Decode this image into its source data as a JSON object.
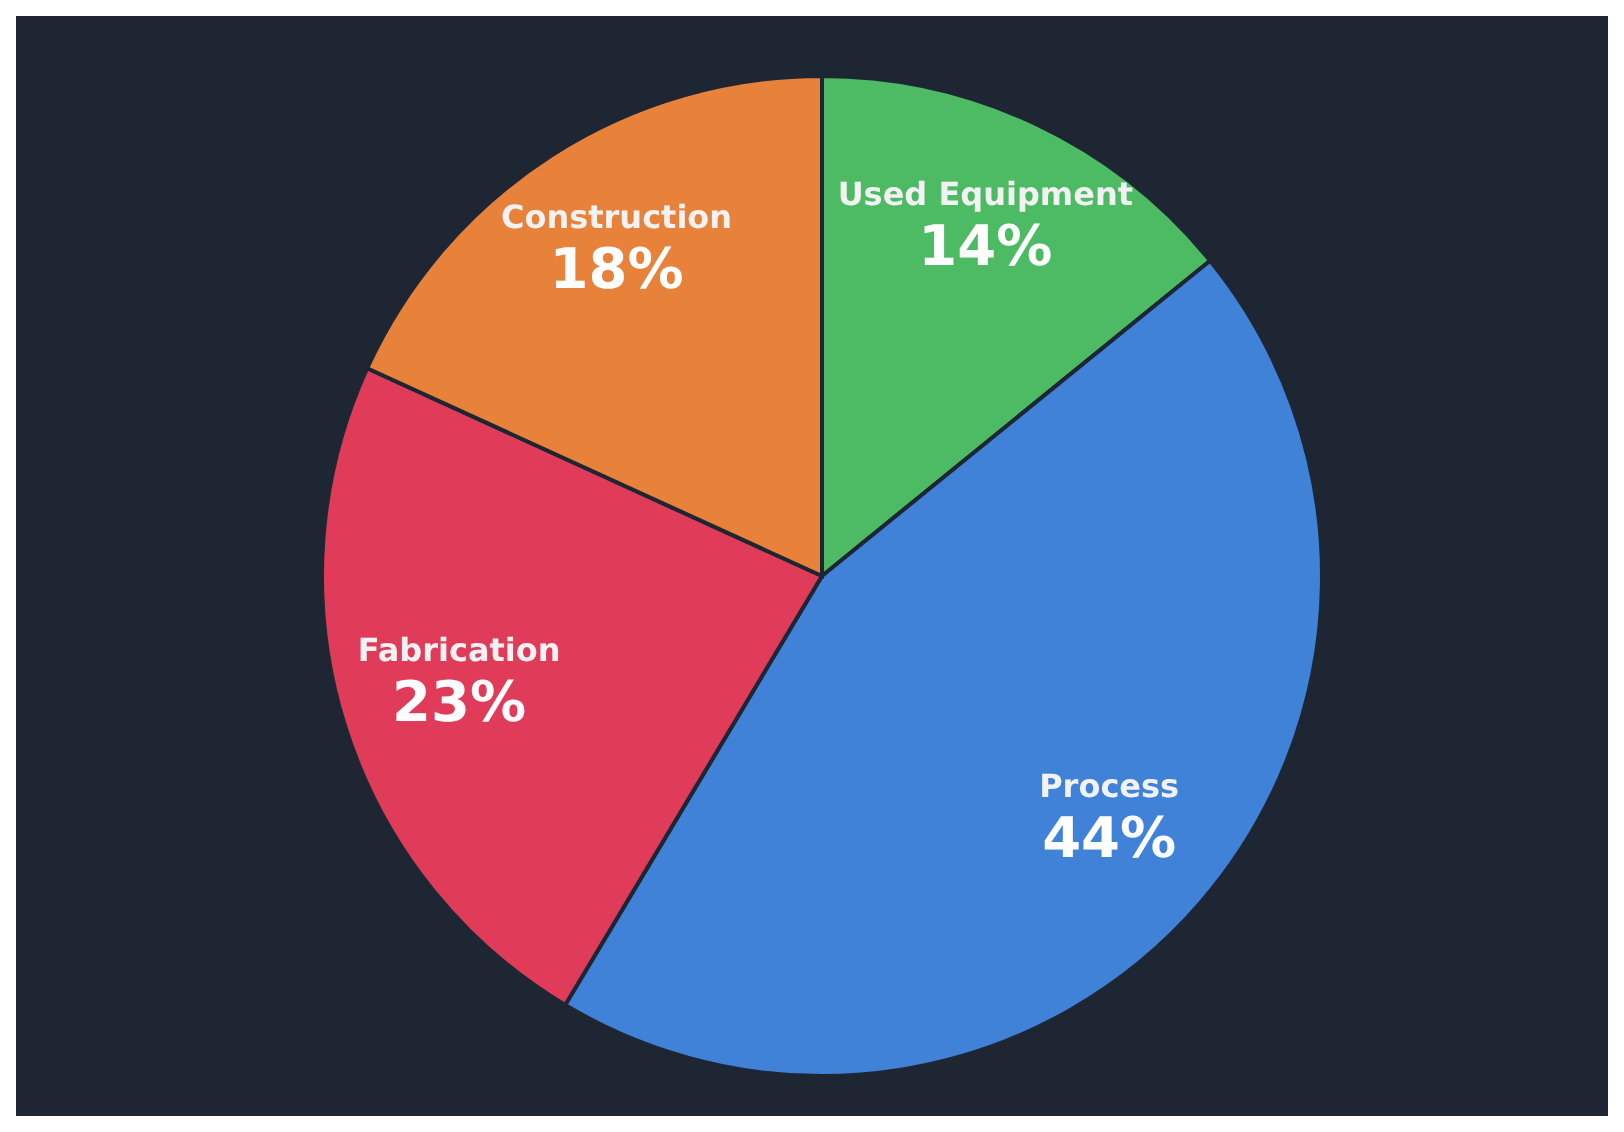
{
  "chart_data": {
    "type": "pie",
    "categories": [
      "Used Equipment",
      "Process",
      "Fabrication",
      "Construction"
    ],
    "values": [
      14,
      44,
      23,
      18
    ],
    "value_labels": [
      "14%",
      "44%",
      "23%",
      "18%"
    ],
    "colors": [
      "#4cbb63",
      "#3f82d8",
      "#e03c5a",
      "#e8823a"
    ]
  }
}
